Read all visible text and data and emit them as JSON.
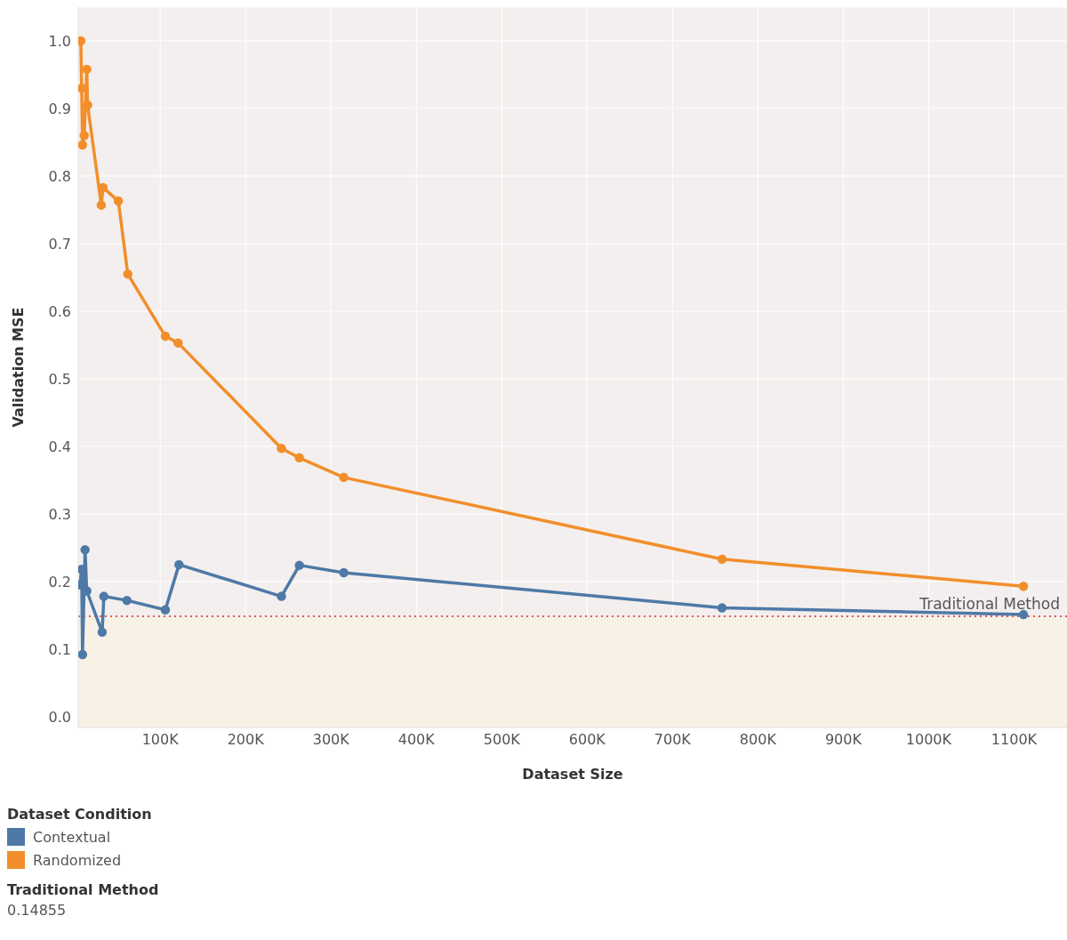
{
  "chart_data": {
    "type": "line",
    "xlabel": "Dataset Size",
    "ylabel": "Validation MSE",
    "legend_title": "Dataset Condition",
    "legend": "bottom left",
    "grid": true,
    "marker": "circle",
    "line_style": "solid",
    "xlim": [
      4000,
      1162000
    ],
    "xticks": [
      {
        "value": 100000,
        "label": "100K"
      },
      {
        "value": 200000,
        "label": "200K"
      },
      {
        "value": 300000,
        "label": "300K"
      },
      {
        "value": 400000,
        "label": "400K"
      },
      {
        "value": 500000,
        "label": "500K"
      },
      {
        "value": 600000,
        "label": "600K"
      },
      {
        "value": 700000,
        "label": "700K"
      },
      {
        "value": 800000,
        "label": "800K"
      },
      {
        "value": 900000,
        "label": "900K"
      },
      {
        "value": 1000000,
        "label": "1000K"
      },
      {
        "value": 1100000,
        "label": "1100K"
      }
    ],
    "ylim": [
      -0.016,
      1.05
    ],
    "yticks": [
      {
        "value": 0,
        "label": "0.0"
      },
      0.1,
      0.2,
      0.3,
      0.4,
      0.5,
      0.6,
      0.7,
      0.8,
      0.9,
      {
        "value": 1,
        "label": "1.0"
      }
    ],
    "series": [
      {
        "name": "Contextual",
        "color": "#4e79a7",
        "x": [
          6000,
          8000,
          9000,
          12000,
          14000,
          32000,
          34000,
          61000,
          106000,
          122000,
          242000,
          263000,
          315000,
          758000,
          1111000
        ],
        "values": [
          0.195,
          0.218,
          0.092,
          0.247,
          0.186,
          0.125,
          0.178,
          0.172,
          0.158,
          0.225,
          0.178,
          0.224,
          0.213,
          0.161,
          0.151
        ]
      },
      {
        "name": "Randomized",
        "color": "#f28e2b",
        "x": [
          7000,
          8000,
          9000,
          11000,
          14000,
          15000,
          31000,
          33000,
          51000,
          62000,
          106000,
          121000,
          242000,
          263000,
          315000,
          758000,
          1111000
        ],
        "values": [
          1.0,
          0.93,
          0.846,
          0.86,
          0.958,
          0.905,
          0.757,
          0.783,
          0.763,
          0.655,
          0.563,
          0.553,
          0.397,
          0.383,
          0.354,
          0.233,
          0.193
        ]
      }
    ],
    "ref_lines": [
      {
        "axis": "y",
        "value": 0.14855,
        "label": "Traditional Method",
        "color": "#e15759",
        "line_style": "dotted"
      }
    ],
    "bands": [
      {
        "axis": "y",
        "from": -0.016,
        "to": 0.14855,
        "color": "#f8f1e6"
      }
    ],
    "annotations": [
      "Traditional Method",
      "0.14855"
    ]
  }
}
